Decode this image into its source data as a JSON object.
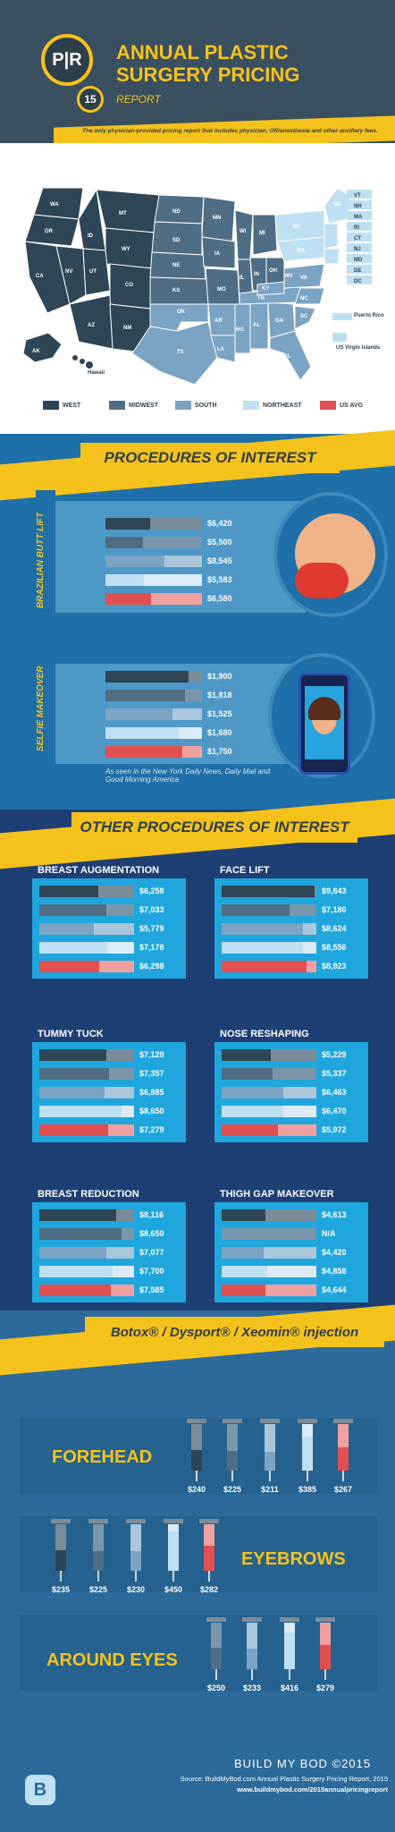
{
  "header": {
    "logo_text": "P|R",
    "badge": "15",
    "title": "ANNUAL PLASTIC SURGERY PRICING",
    "subtitle": "REPORT",
    "banner": "The only physician-provided pricing report that includes physician, OR/anesthesia and other ancillary fees."
  },
  "map": {
    "west_states": [
      "WA",
      "OR",
      "CA",
      "ID",
      "NV",
      "MT",
      "WY",
      "UT",
      "CO",
      "AZ",
      "NM",
      "AK",
      "Hawaii"
    ],
    "legend": [
      {
        "label": "WEST",
        "color": "#2e4656"
      },
      {
        "label": "MIDWEST",
        "color": "#4f6e86"
      },
      {
        "label": "SOUTH",
        "color": "#7ba3c3"
      },
      {
        "label": "NORTHEAST",
        "color": "#bfe0f2"
      },
      {
        "label": "US AVG",
        "color": "#e05050"
      }
    ],
    "label_puerto_rico": "Puerto Rico",
    "label_virgin_islands": "US Virgin Islands",
    "label_hawaii": "Hawaii",
    "label_ak": "AK"
  },
  "sections": {
    "procedures": "PROCEDURES OF INTEREST",
    "other": "OTHER PROCEDURES OF INTEREST",
    "injection": "Botox® / Dysport® / Xeomin® injection"
  },
  "note": "As seen in the New York Daily News, Daily Mail and Good Morning America",
  "chart_data": [
    {
      "type": "bar",
      "title": "BRAZILIAN BUTT LIFT",
      "categories": [
        "WEST",
        "MIDWEST",
        "SOUTH",
        "NORTHEAST",
        "US AVG"
      ],
      "values": [
        6420,
        5500,
        8545,
        5583,
        6580
      ],
      "labels": [
        "$6,420",
        "$5,500",
        "$8,545",
        "$5,583",
        "$6,580"
      ]
    },
    {
      "type": "bar",
      "title": "SELFIE MAKEOVER",
      "categories": [
        "WEST",
        "MIDWEST",
        "SOUTH",
        "NORTHEAST",
        "US AVG"
      ],
      "values": [
        1900,
        1818,
        1525,
        1680,
        1750
      ],
      "labels": [
        "$1,900",
        "$1,818",
        "$1,525",
        "$1,680",
        "$1,750"
      ]
    },
    {
      "type": "bar",
      "title": "BREAST AUGMENTATION",
      "categories": [
        "WEST",
        "MIDWEST",
        "SOUTH",
        "NORTHEAST",
        "US AVG"
      ],
      "values": [
        6258,
        7033,
        5779,
        7178,
        6298
      ],
      "labels": [
        "$6,258",
        "$7,033",
        "$5,779",
        "$7,178",
        "$6,298"
      ]
    },
    {
      "type": "bar",
      "title": "FACE LIFT",
      "categories": [
        "WEST",
        "MIDWEST",
        "SOUTH",
        "NORTHEAST",
        "US AVG"
      ],
      "values": [
        9843,
        7180,
        8624,
        8556,
        8923
      ],
      "labels": [
        "$9,843",
        "$7,180",
        "$8,624",
        "$8,556",
        "$8,923"
      ]
    },
    {
      "type": "bar",
      "title": "TUMMY TUCK",
      "categories": [
        "WEST",
        "MIDWEST",
        "SOUTH",
        "NORTHEAST",
        "US AVG"
      ],
      "values": [
        7120,
        7357,
        6885,
        8650,
        7279
      ],
      "labels": [
        "$7,120",
        "$7,357",
        "$6,885",
        "$8,650",
        "$7,279"
      ]
    },
    {
      "type": "bar",
      "title": "NOSE RESHAPING",
      "categories": [
        "WEST",
        "MIDWEST",
        "SOUTH",
        "NORTHEAST",
        "US AVG"
      ],
      "values": [
        5229,
        5337,
        6463,
        6470,
        5972
      ],
      "labels": [
        "$5,229",
        "$5,337",
        "$6,463",
        "$6,470",
        "$5,972"
      ]
    },
    {
      "type": "bar",
      "title": "BREAST REDUCTION",
      "categories": [
        "WEST",
        "MIDWEST",
        "SOUTH",
        "NORTHEAST",
        "US AVG"
      ],
      "values": [
        8116,
        8650,
        7077,
        7700,
        7585
      ],
      "labels": [
        "$8,116",
        "$8,650",
        "$7,077",
        "$7,700",
        "$7,585"
      ]
    },
    {
      "type": "bar",
      "title": "THIGH GAP MAKEOVER",
      "categories": [
        "WEST",
        "MIDWEST",
        "SOUTH",
        "NORTHEAST",
        "US AVG"
      ],
      "values": [
        4613,
        null,
        4420,
        4858,
        4644
      ],
      "labels": [
        "$4,613",
        "N/A",
        "$4,420",
        "$4,858",
        "$4,644"
      ]
    },
    {
      "type": "bar",
      "title": "FOREHEAD",
      "categories": [
        "WEST",
        "MIDWEST",
        "SOUTH",
        "NORTHEAST",
        "US AVG"
      ],
      "values": [
        240,
        225,
        211,
        385,
        267
      ],
      "labels": [
        "$240",
        "$225",
        "$211",
        "$385",
        "$267"
      ]
    },
    {
      "type": "bar",
      "title": "EYEBROWS",
      "categories": [
        "WEST",
        "MIDWEST",
        "SOUTH",
        "NORTHEAST",
        "US AVG"
      ],
      "values": [
        235,
        225,
        230,
        450,
        282
      ],
      "labels": [
        "$235",
        "$225",
        "$230",
        "$450",
        "$282"
      ]
    },
    {
      "type": "bar",
      "title": "AROUND EYES",
      "categories": [
        "MIDWEST",
        "SOUTH",
        "NORTHEAST",
        "US AVG"
      ],
      "values": [
        250,
        233,
        416,
        279
      ],
      "labels": [
        "$250",
        "$233",
        "$416",
        "$279"
      ]
    }
  ],
  "footer": {
    "brand": "BUILD MY BOD",
    "year": "©2015",
    "source": "Source: BuildMyBod.com Annual Plastic Surgery Pricing Report, 2015",
    "url": "www.buildmybod.com/2015annualpricingreport"
  }
}
